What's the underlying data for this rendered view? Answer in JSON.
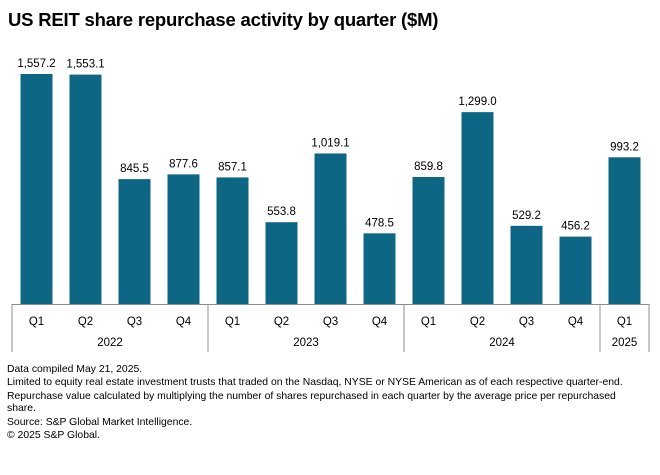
{
  "title": "US REIT share repurchase activity by quarter ($M)",
  "chart_data": {
    "type": "bar",
    "title": "US REIT share repurchase activity by quarter ($M)",
    "xlabel": "",
    "ylabel": "",
    "ylim": [
      0,
      1600
    ],
    "grid": false,
    "colors": {
      "bar": "#0c6684",
      "axis": "#8c8c8c",
      "text": "#000000"
    },
    "categories": [
      "Q1",
      "Q2",
      "Q3",
      "Q4",
      "Q1",
      "Q2",
      "Q3",
      "Q4",
      "Q1",
      "Q2",
      "Q3",
      "Q4",
      "Q1"
    ],
    "value_labels": [
      "1,557.2",
      "1,553.1",
      "845.5",
      "877.6",
      "857.1",
      "553.8",
      "1,019.1",
      "478.5",
      "859.8",
      "1,299.0",
      "529.2",
      "456.2",
      "993.2"
    ],
    "values": [
      1557.2,
      1553.1,
      845.5,
      877.6,
      857.1,
      553.8,
      1019.1,
      478.5,
      859.8,
      1299.0,
      529.2,
      456.2,
      993.2
    ],
    "years": [
      {
        "label": "2022",
        "count": 4
      },
      {
        "label": "2023",
        "count": 4
      },
      {
        "label": "2024",
        "count": 4
      },
      {
        "label": "2025",
        "count": 1
      }
    ]
  },
  "notes": [
    "Data compiled May 21, 2025.",
    "Limited to equity real estate investment trusts that traded on the Nasdaq, NYSE or NYSE American as of each respective quarter-end.",
    "Repurchase value calculated by multiplying the number of shares repurchased in each quarter by the average price per repurchased share.",
    "Source: S&P Global Market Intelligence.",
    "© 2025 S&P Global."
  ]
}
